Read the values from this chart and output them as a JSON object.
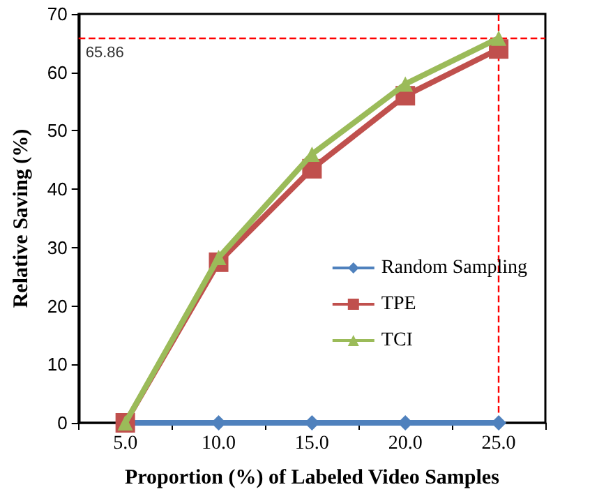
{
  "chart_data": {
    "type": "line",
    "xlabel": "Proportion (%) of Labeled Video Samples",
    "ylabel": "Relative Saving (%)",
    "categories": [
      "5.0",
      "10.0",
      "15.0",
      "20.0",
      "25.0"
    ],
    "series": [
      {
        "name": "Random Sampling",
        "color": "#4f81bd",
        "marker": "diamond",
        "values": [
          0,
          0,
          0,
          0,
          0
        ]
      },
      {
        "name": "TPE",
        "color": "#c0504d",
        "marker": "square",
        "values": [
          0,
          27.5,
          43.5,
          56,
          64
        ]
      },
      {
        "name": "TCI",
        "color": "#9bbb59",
        "marker": "triangle",
        "values": [
          0,
          28.3,
          46,
          58,
          65.86
        ]
      }
    ],
    "ylim": [
      0,
      70
    ],
    "yticks": [
      0,
      10,
      20,
      30,
      40,
      50,
      60,
      70
    ],
    "grid": false,
    "legend": "right",
    "ref_lines": [
      {
        "axis": "y",
        "value": 65.86,
        "label": "65.86",
        "color": "#ff0000",
        "line_style": "dashed"
      },
      {
        "axis": "x",
        "value": "25.0",
        "label": null,
        "color": "#ff0000",
        "line_style": "dashed"
      }
    ]
  }
}
